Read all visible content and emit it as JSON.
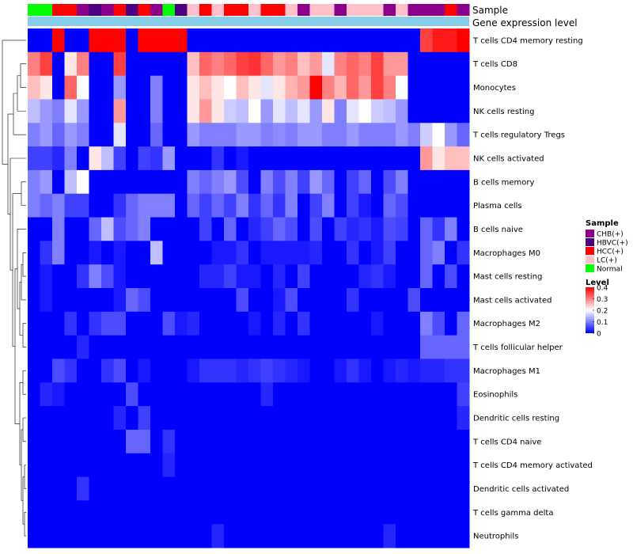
{
  "chart_data": {
    "type": "heatmap",
    "title": "",
    "annotation_tracks": [
      "Sample",
      "Gene expression level"
    ],
    "rows": [
      "T cells CD4 memory resting",
      "T cells CD8",
      "Monocytes",
      "NK cells resting",
      "T cells regulatory  Tregs",
      "NK cells activated",
      "B cells memory",
      "Plasma cells",
      "B cells naive",
      "Macrophages M0",
      "Mast cells resting",
      "Mast cells activated",
      "Macrophages M2",
      "T cells follicular helper",
      "Macrophages M1",
      "Eosinophils",
      "Dendritic cells resting",
      "T cells CD4 naive",
      "T cells CD4 memory activated",
      "Dendritic cells activated",
      "T cells gamma delta",
      "Neutrophils"
    ],
    "sample_groups": [
      "Normal",
      "Normal",
      "HCC(+)",
      "HCC(+)",
      "CHB(+)",
      "HBVC(+)",
      "CHB(+)",
      "HCC(+)",
      "HBVC(+)",
      "HCC(+)",
      "CHB(+)",
      "Normal",
      "HBVC(+)",
      "LC(+)",
      "HCC(+)",
      "LC(+)",
      "HCC(+)",
      "HCC(+)",
      "LC(+)",
      "HCC(+)",
      "HCC(+)",
      "LC(+)",
      "CHB(+)",
      "LC(+)",
      "LC(+)",
      "CHB(+)",
      "LC(+)",
      "LC(+)",
      "LC(+)",
      "CHB(+)",
      "LC(+)",
      "CHB(+)",
      "CHB(+)",
      "CHB(+)",
      "HCC(+)",
      "CHB(+)"
    ],
    "sample_colors": {
      "CHB(+)": "#8B008B",
      "HBVC(+)": "#4B0082",
      "HCC(+)": "#FF0000",
      "LC(+)": "#FFC0CB",
      "Normal": "#00FF00"
    },
    "expression_track_color": "#87CEEB",
    "values": [
      [
        0.0,
        0.0,
        0.4,
        0.0,
        0.0,
        0.4,
        0.4,
        0.4,
        0.0,
        0.4,
        0.4,
        0.4,
        0.4,
        0.0,
        0.0,
        0.0,
        0.0,
        0.0,
        0.0,
        0.0,
        0.0,
        0.0,
        0.0,
        0.0,
        0.0,
        0.0,
        0.0,
        0.0,
        0.0,
        0.0,
        0.0,
        0.0,
        0.35,
        0.38,
        0.38,
        0.4
      ],
      [
        0.3,
        0.35,
        0.0,
        0.22,
        0.3,
        0.0,
        0.0,
        0.35,
        0.0,
        0.0,
        0.0,
        0.0,
        0.0,
        0.25,
        0.32,
        0.3,
        0.32,
        0.35,
        0.36,
        0.32,
        0.28,
        0.3,
        0.25,
        0.28,
        0.18,
        0.3,
        0.32,
        0.3,
        0.35,
        0.28,
        0.28,
        0.0,
        0.0,
        0.0,
        0.0,
        0.0
      ],
      [
        0.25,
        0.22,
        0.0,
        0.32,
        0.2,
        0.0,
        0.0,
        0.12,
        0.0,
        0.0,
        0.1,
        0.0,
        0.0,
        0.22,
        0.25,
        0.22,
        0.2,
        0.25,
        0.22,
        0.18,
        0.22,
        0.26,
        0.28,
        0.4,
        0.3,
        0.26,
        0.32,
        0.28,
        0.35,
        0.3,
        0.2,
        0.0,
        0.0,
        0.0,
        0.0,
        0.0
      ],
      [
        0.15,
        0.12,
        0.1,
        0.18,
        0.12,
        0.0,
        0.0,
        0.28,
        0.0,
        0.0,
        0.1,
        0.0,
        0.0,
        0.22,
        0.28,
        0.22,
        0.16,
        0.15,
        0.2,
        0.12,
        0.18,
        0.15,
        0.18,
        0.12,
        0.22,
        0.1,
        0.18,
        0.2,
        0.16,
        0.15,
        0.12,
        0.0,
        0.0,
        0.0,
        0.0,
        0.0
      ],
      [
        0.1,
        0.12,
        0.08,
        0.12,
        0.1,
        0.0,
        0.0,
        0.18,
        0.0,
        0.0,
        0.08,
        0.0,
        0.0,
        0.12,
        0.1,
        0.1,
        0.1,
        0.12,
        0.12,
        0.1,
        0.11,
        0.1,
        0.12,
        0.12,
        0.1,
        0.1,
        0.12,
        0.1,
        0.1,
        0.1,
        0.12,
        0.1,
        0.16,
        0.2,
        0.12,
        0.08
      ],
      [
        0.05,
        0.05,
        0.03,
        0.1,
        0.0,
        0.22,
        0.15,
        0.05,
        0.0,
        0.05,
        0.04,
        0.12,
        0.0,
        0.0,
        0.0,
        0.04,
        0.0,
        0.02,
        0.0,
        0.0,
        0.0,
        0.0,
        0.0,
        0.0,
        0.0,
        0.0,
        0.0,
        0.0,
        0.0,
        0.0,
        0.0,
        0.0,
        0.28,
        0.22,
        0.25,
        0.25
      ],
      [
        0.1,
        0.12,
        0.0,
        0.15,
        0.2,
        0.0,
        0.0,
        0.0,
        0.0,
        0.0,
        0.0,
        0.0,
        0.0,
        0.1,
        0.08,
        0.1,
        0.12,
        0.06,
        0.0,
        0.1,
        0.06,
        0.1,
        0.05,
        0.12,
        0.08,
        0.0,
        0.05,
        0.08,
        0.0,
        0.06,
        0.1,
        0.0,
        0.0,
        0.0,
        0.0,
        0.0
      ],
      [
        0.1,
        0.08,
        0.1,
        0.05,
        0.05,
        0.0,
        0.0,
        0.04,
        0.08,
        0.1,
        0.1,
        0.1,
        0.0,
        0.08,
        0.05,
        0.08,
        0.05,
        0.1,
        0.04,
        0.08,
        0.04,
        0.1,
        0.0,
        0.05,
        0.1,
        0.0,
        0.05,
        0.02,
        0.0,
        0.08,
        0.06,
        0.0,
        0.0,
        0.0,
        0.0,
        0.0
      ],
      [
        0.0,
        0.0,
        0.1,
        0.0,
        0.0,
        0.08,
        0.15,
        0.06,
        0.08,
        0.1,
        0.0,
        0.0,
        0.0,
        0.0,
        0.05,
        0.0,
        0.08,
        0.0,
        0.03,
        0.05,
        0.08,
        0.06,
        0.0,
        0.06,
        0.0,
        0.05,
        0.03,
        0.04,
        0.02,
        0.06,
        0.05,
        0.0,
        0.08,
        0.04,
        0.1,
        0.0
      ],
      [
        0.0,
        0.04,
        0.1,
        0.0,
        0.0,
        0.02,
        0.0,
        0.02,
        0.0,
        0.0,
        0.15,
        0.0,
        0.0,
        0.0,
        0.0,
        0.02,
        0.02,
        0.04,
        0.0,
        0.02,
        0.02,
        0.02,
        0.02,
        0.03,
        0.0,
        0.0,
        0.04,
        0.0,
        0.02,
        0.05,
        0.0,
        0.0,
        0.08,
        0.1,
        0.0,
        0.04
      ],
      [
        0.0,
        0.02,
        0.0,
        0.0,
        0.04,
        0.1,
        0.06,
        0.02,
        0.0,
        0.0,
        0.0,
        0.0,
        0.0,
        0.0,
        0.03,
        0.03,
        0.05,
        0.02,
        0.02,
        0.0,
        0.03,
        0.0,
        0.05,
        0.0,
        0.0,
        0.0,
        0.0,
        0.03,
        0.04,
        0.02,
        0.0,
        0.0,
        0.08,
        0.0,
        0.06,
        0.0
      ],
      [
        0.0,
        0.02,
        0.0,
        0.0,
        0.0,
        0.0,
        0.0,
        0.02,
        0.08,
        0.06,
        0.0,
        0.0,
        0.0,
        0.0,
        0.0,
        0.0,
        0.0,
        0.06,
        0.0,
        0.0,
        0.02,
        0.06,
        0.0,
        0.0,
        0.0,
        0.0,
        0.04,
        0.0,
        0.0,
        0.0,
        0.0,
        0.06,
        0.0,
        0.0,
        0.0,
        0.0
      ],
      [
        0.0,
        0.0,
        0.0,
        0.04,
        0.0,
        0.04,
        0.06,
        0.06,
        0.0,
        0.0,
        0.0,
        0.06,
        0.02,
        0.03,
        0.0,
        0.0,
        0.0,
        0.0,
        0.02,
        0.0,
        0.03,
        0.0,
        0.04,
        0.0,
        0.0,
        0.0,
        0.0,
        0.0,
        0.02,
        0.0,
        0.0,
        0.0,
        0.1,
        0.06,
        0.0,
        0.08
      ],
      [
        0.0,
        0.0,
        0.0,
        0.0,
        0.03,
        0.0,
        0.0,
        0.0,
        0.0,
        0.0,
        0.0,
        0.0,
        0.0,
        0.0,
        0.0,
        0.0,
        0.0,
        0.0,
        0.0,
        0.0,
        0.0,
        0.0,
        0.0,
        0.0,
        0.0,
        0.0,
        0.0,
        0.0,
        0.0,
        0.0,
        0.0,
        0.0,
        0.08,
        0.08,
        0.08,
        0.08
      ],
      [
        0.0,
        0.0,
        0.06,
        0.04,
        0.0,
        0.0,
        0.04,
        0.06,
        0.0,
        0.02,
        0.0,
        0.0,
        0.0,
        0.02,
        0.04,
        0.04,
        0.04,
        0.03,
        0.04,
        0.05,
        0.04,
        0.03,
        0.02,
        0.0,
        0.0,
        0.02,
        0.04,
        0.02,
        0.0,
        0.02,
        0.03,
        0.02,
        0.03,
        0.03,
        0.04,
        0.04
      ],
      [
        0.0,
        0.03,
        0.02,
        0.0,
        0.0,
        0.0,
        0.0,
        0.0,
        0.06,
        0.0,
        0.0,
        0.0,
        0.0,
        0.0,
        0.0,
        0.0,
        0.0,
        0.0,
        0.0,
        0.03,
        0.0,
        0.0,
        0.0,
        0.0,
        0.0,
        0.0,
        0.0,
        0.0,
        0.0,
        0.0,
        0.0,
        0.0,
        0.0,
        0.0,
        0.0,
        0.05
      ],
      [
        0.0,
        0.0,
        0.0,
        0.0,
        0.0,
        0.0,
        0.0,
        0.03,
        0.0,
        0.05,
        0.0,
        0.0,
        0.0,
        0.0,
        0.0,
        0.0,
        0.0,
        0.0,
        0.0,
        0.0,
        0.0,
        0.0,
        0.0,
        0.0,
        0.0,
        0.0,
        0.0,
        0.0,
        0.0,
        0.0,
        0.0,
        0.0,
        0.0,
        0.0,
        0.0,
        0.03
      ],
      [
        0.0,
        0.0,
        0.0,
        0.0,
        0.0,
        0.0,
        0.0,
        0.0,
        0.08,
        0.08,
        0.0,
        0.04,
        0.0,
        0.0,
        0.0,
        0.0,
        0.0,
        0.0,
        0.0,
        0.0,
        0.0,
        0.0,
        0.0,
        0.0,
        0.0,
        0.0,
        0.0,
        0.0,
        0.0,
        0.0,
        0.0,
        0.0,
        0.0,
        0.0,
        0.0,
        0.0
      ],
      [
        0.0,
        0.0,
        0.0,
        0.0,
        0.0,
        0.0,
        0.0,
        0.0,
        0.0,
        0.0,
        0.0,
        0.03,
        0.0,
        0.0,
        0.0,
        0.0,
        0.0,
        0.0,
        0.0,
        0.0,
        0.0,
        0.0,
        0.0,
        0.0,
        0.0,
        0.0,
        0.0,
        0.0,
        0.0,
        0.0,
        0.0,
        0.0,
        0.0,
        0.0,
        0.0,
        0.0
      ],
      [
        0.0,
        0.0,
        0.0,
        0.0,
        0.04,
        0.0,
        0.0,
        0.0,
        0.0,
        0.0,
        0.0,
        0.0,
        0.0,
        0.0,
        0.0,
        0.0,
        0.0,
        0.0,
        0.0,
        0.0,
        0.0,
        0.0,
        0.0,
        0.0,
        0.0,
        0.0,
        0.0,
        0.0,
        0.0,
        0.0,
        0.0,
        0.0,
        0.0,
        0.0,
        0.0,
        0.0
      ],
      [
        0.0,
        0.0,
        0.0,
        0.0,
        0.0,
        0.0,
        0.0,
        0.0,
        0.0,
        0.0,
        0.0,
        0.0,
        0.0,
        0.0,
        0.0,
        0.0,
        0.0,
        0.0,
        0.0,
        0.0,
        0.0,
        0.0,
        0.0,
        0.0,
        0.0,
        0.0,
        0.0,
        0.0,
        0.0,
        0.0,
        0.0,
        0.0,
        0.0,
        0.0,
        0.0,
        0.0
      ],
      [
        0.0,
        0.0,
        0.0,
        0.0,
        0.0,
        0.0,
        0.0,
        0.0,
        0.0,
        0.0,
        0.0,
        0.0,
        0.0,
        0.0,
        0.0,
        0.03,
        0.0,
        0.0,
        0.0,
        0.0,
        0.0,
        0.0,
        0.0,
        0.0,
        0.0,
        0.0,
        0.0,
        0.0,
        0.0,
        0.03,
        0.0,
        0.0,
        0.0,
        0.0,
        0.0,
        0.0
      ]
    ],
    "color_scale": {
      "min": 0,
      "max": 0.4,
      "low_color": "#0000FF",
      "mid_color": "#FFFFFF",
      "high_color": "#FF0000",
      "mid_value": 0.2
    },
    "legend": {
      "sample_title": "Sample",
      "sample_entries": [
        "CHB(+)",
        "HBVC(+)",
        "HCC(+)",
        "LC(+)",
        "Normal"
      ],
      "level_title": "Level",
      "level_ticks": [
        "0.4",
        "0.3",
        "0.2",
        "0.1",
        "0"
      ],
      "level_tick_values": [
        0.4,
        0.3,
        0.2,
        0.1,
        0
      ],
      "position": "right"
    }
  }
}
